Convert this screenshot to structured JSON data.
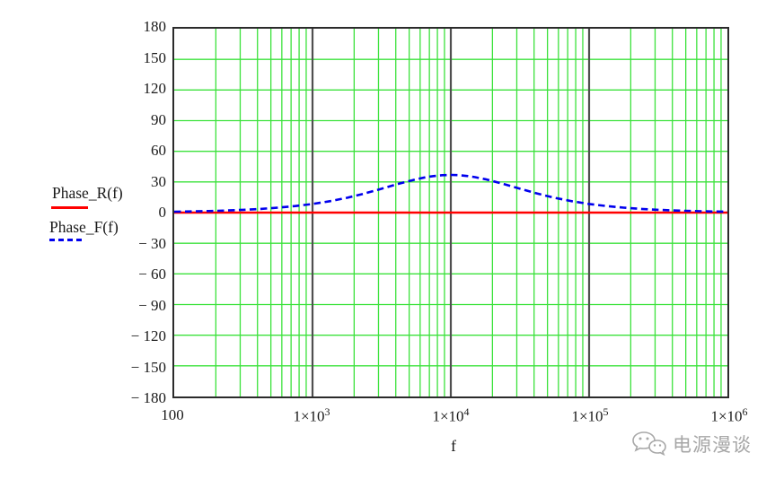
{
  "watermark": {
    "text": "电源漫谈",
    "icon": "wechat-icon",
    "color": "#a6a6a6"
  },
  "legend": {
    "items": [
      {
        "label": "Phase_R(f)",
        "color": "#ff0000",
        "style": "solid"
      },
      {
        "label": "Phase_F(f)",
        "color": "#0000ee",
        "style": "dashed"
      }
    ],
    "position": "left-middle"
  },
  "chart_data": {
    "type": "line",
    "x_scale": "log",
    "xlim": [
      100,
      1000000
    ],
    "ylim": [
      -180,
      180
    ],
    "y_tick_step": 30,
    "grid": true,
    "grid_color": "#3be23b",
    "decade_line_color": "#4f4f4f",
    "border_color": "#2b2b2b",
    "xlabel": "f",
    "ylabel": "",
    "title": "",
    "yticks": [
      {
        "v": 180,
        "label": "180"
      },
      {
        "v": 150,
        "label": "150"
      },
      {
        "v": 120,
        "label": "120"
      },
      {
        "v": 90,
        "label": "90"
      },
      {
        "v": 60,
        "label": "60"
      },
      {
        "v": 30,
        "label": "30"
      },
      {
        "v": 0,
        "label": "0"
      },
      {
        "v": -30,
        "label": "− 30"
      },
      {
        "v": -60,
        "label": "− 60"
      },
      {
        "v": -90,
        "label": "− 90"
      },
      {
        "v": -120,
        "label": "− 120"
      },
      {
        "v": -150,
        "label": "− 150"
      },
      {
        "v": -180,
        "label": "− 180"
      }
    ],
    "xticks": [
      {
        "v": 100,
        "base": "100",
        "exp": ""
      },
      {
        "v": 1000,
        "base": "1×10",
        "exp": "3"
      },
      {
        "v": 10000,
        "base": "1×10",
        "exp": "4"
      },
      {
        "v": 100000,
        "base": "1×10",
        "exp": "5"
      },
      {
        "v": 1000000,
        "base": "1×10",
        "exp": "6"
      }
    ],
    "series": [
      {
        "name": "Phase_R(f)",
        "color": "#ff0000",
        "style": "solid",
        "width": 2.4,
        "x": [
          100,
          1000000
        ],
        "y": [
          0,
          0
        ]
      },
      {
        "name": "Phase_F(f)",
        "color": "#0000ee",
        "style": "dashed",
        "width": 2.6,
        "peak": {
          "x": 10000,
          "y": 36.87
        },
        "x": [
          100,
          133,
          178,
          237,
          316,
          422,
          562,
          750,
          1000,
          1334,
          1778,
          2371,
          3162,
          4217,
          5623,
          6683,
          7499,
          8660,
          10000,
          11548,
          13335,
          14968,
          17783,
          23714,
          31623,
          42170,
          56234,
          74989,
          100000,
          133352,
          177828,
          237137,
          316228,
          421697,
          562341,
          749894,
          1000000
        ],
        "y": [
          0.86,
          1.15,
          1.53,
          2.04,
          2.71,
          3.61,
          4.81,
          6.38,
          8.45,
          11.12,
          14.5,
          18.61,
          23.33,
          28.23,
          32.65,
          34.74,
          35.76,
          36.59,
          36.87,
          36.59,
          35.75,
          34.71,
          32.65,
          28.23,
          23.33,
          18.61,
          14.5,
          11.12,
          8.45,
          6.38,
          4.81,
          3.61,
          2.71,
          2.04,
          1.53,
          1.15,
          0.86
        ]
      }
    ]
  }
}
